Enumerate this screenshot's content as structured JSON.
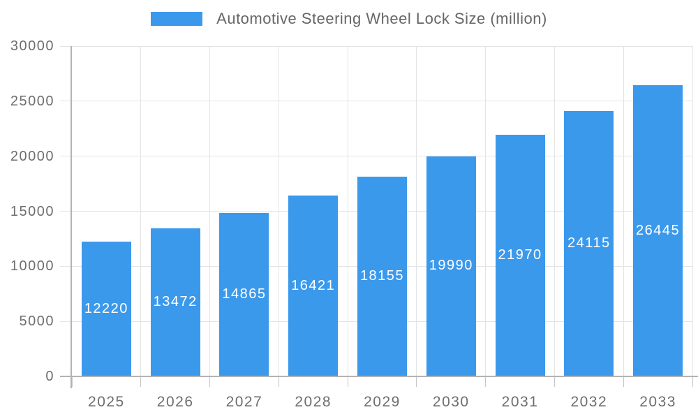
{
  "legend": {
    "series_label": "Automotive Steering Wheel Lock Size (million)"
  },
  "colors": {
    "bar": "#3B99EC",
    "axis_text": "#6e6e6e",
    "legend_text": "#666666",
    "gridline": "#e4e4e4",
    "axis_line": "#b3b3b3",
    "bar_value_text": "#ffffff"
  },
  "chart_data": {
    "type": "bar",
    "title": "Automotive Steering Wheel Lock Size (million)",
    "categories": [
      "2025",
      "2026",
      "2027",
      "2028",
      "2029",
      "2030",
      "2031",
      "2032",
      "2033"
    ],
    "values": [
      12220,
      13472,
      14865,
      16421,
      18155,
      19990,
      21970,
      24115,
      26445
    ],
    "series": [
      {
        "name": "Automotive Steering Wheel Lock Size (million)",
        "values": [
          12220,
          13472,
          14865,
          16421,
          18155,
          19990,
          21970,
          24115,
          26445
        ]
      }
    ],
    "xlabel": "",
    "ylabel": "",
    "ylim": [
      0,
      30000
    ],
    "y_ticks": [
      0,
      5000,
      10000,
      15000,
      20000,
      25000,
      30000
    ],
    "grid": "on",
    "legend_position": "top-center",
    "value_labels": "inside-center-white"
  }
}
